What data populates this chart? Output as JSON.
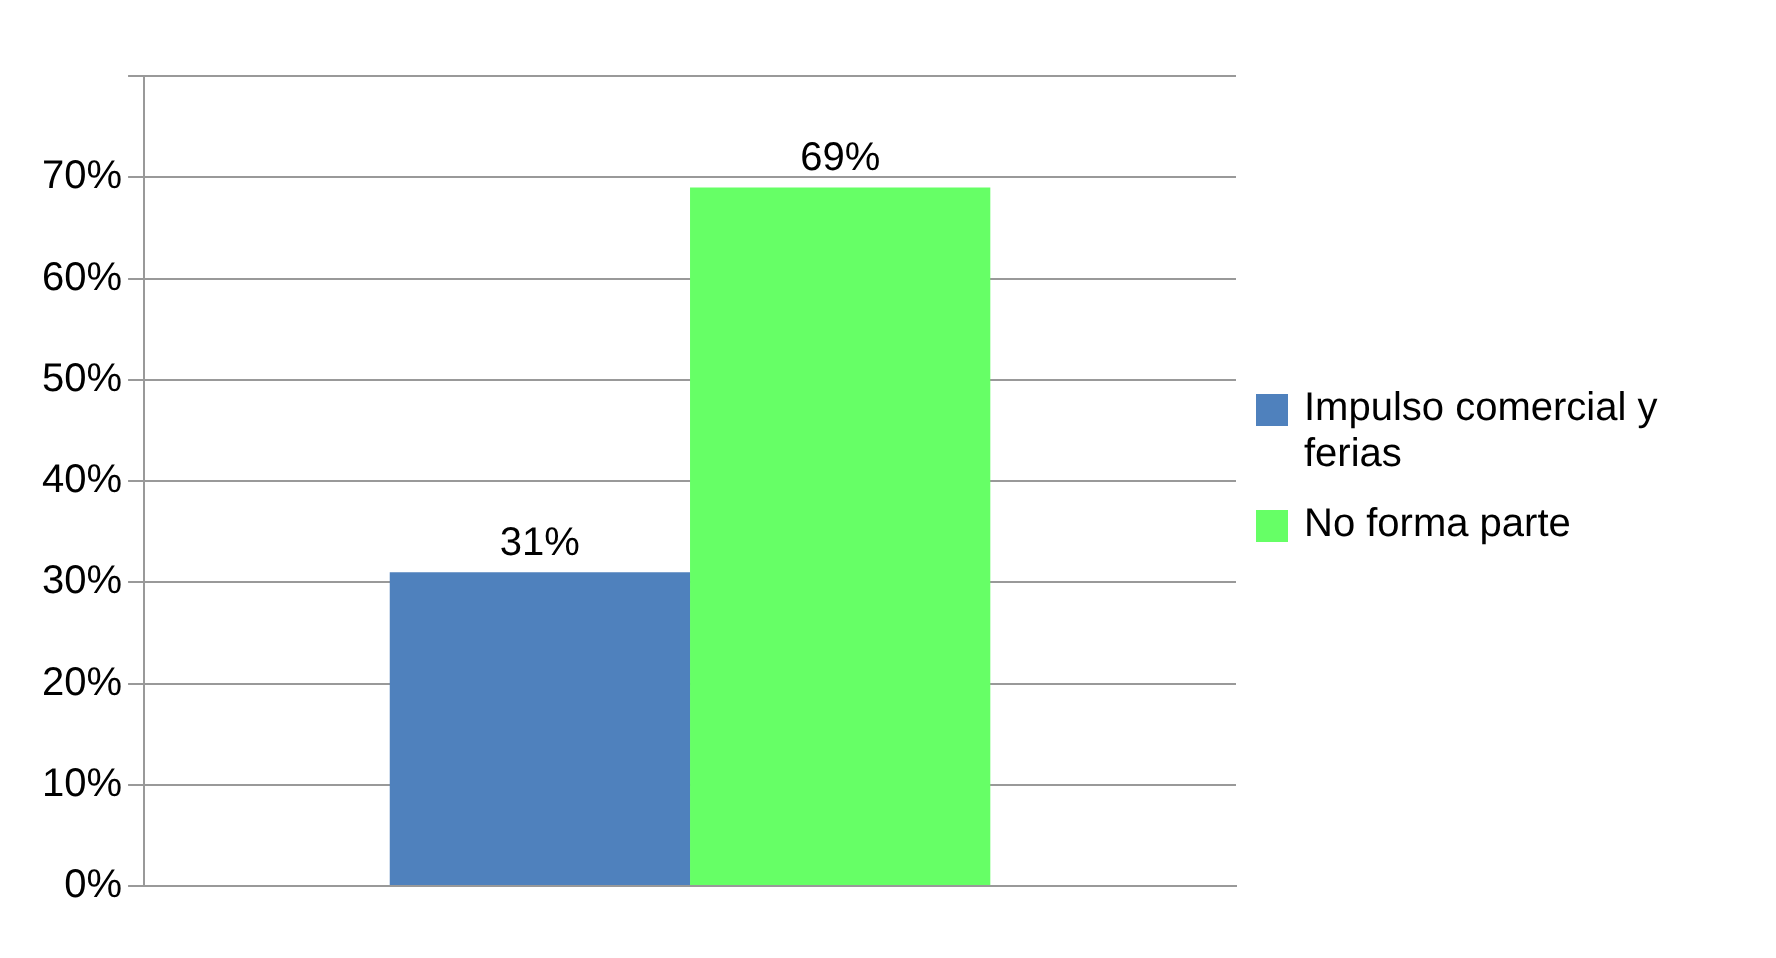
{
  "chart_data": {
    "type": "bar",
    "categories": [
      null
    ],
    "series": [
      {
        "name": "Impulso comercial y ferias",
        "color": "#4f81bd",
        "values": [
          31
        ],
        "value_labels": [
          "31%"
        ]
      },
      {
        "name": "No forma parte",
        "color": "#66ff66",
        "values": [
          69
        ],
        "value_labels": [
          "69%"
        ]
      }
    ],
    "ylim": [
      0,
      80
    ],
    "yticks": [
      {
        "value": 0,
        "label": "0%"
      },
      {
        "value": 10,
        "label": "10%"
      },
      {
        "value": 20,
        "label": "20%"
      },
      {
        "value": 30,
        "label": "30%"
      },
      {
        "value": 40,
        "label": "40%"
      },
      {
        "value": 50,
        "label": "50%"
      },
      {
        "value": 60,
        "label": "60%"
      },
      {
        "value": 70,
        "label": "70%"
      },
      {
        "value": 80,
        "label": null
      }
    ],
    "grid": "y",
    "legend": "right"
  }
}
